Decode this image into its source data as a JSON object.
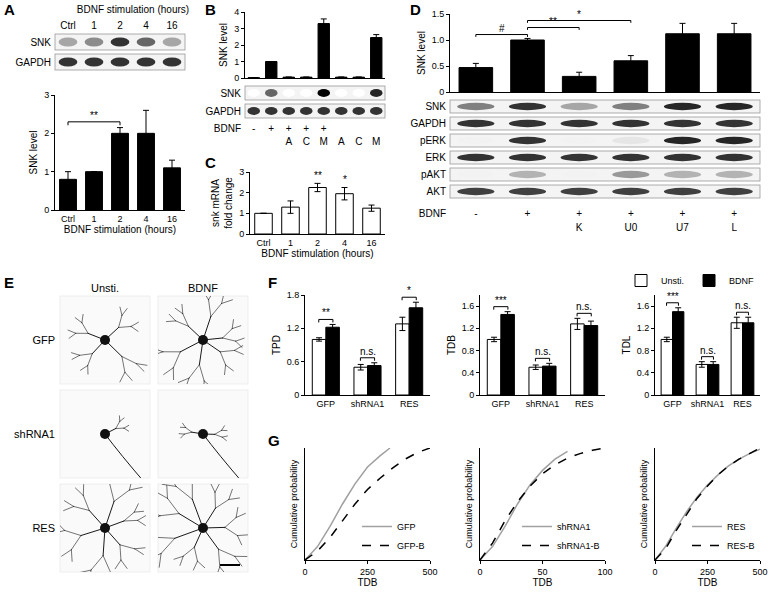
{
  "panel_labels": [
    "A",
    "B",
    "C",
    "D",
    "E",
    "F",
    "G"
  ],
  "blots": [
    {
      "header": "BDNF stimulation (hours)",
      "lanes": [
        "Ctrl",
        "1",
        "2",
        "4",
        "16"
      ],
      "rows": [
        {
          "label": "SNK",
          "intensity": [
            0.35,
            0.45,
            0.8,
            0.6,
            0.35
          ]
        },
        {
          "label": "GAPDH",
          "intensity": [
            0.8,
            0.8,
            0.8,
            0.8,
            0.8
          ]
        }
      ]
    },
    {
      "lane_rows": [
        {
          "label": "BDNF",
          "values": [
            "-",
            "+",
            "+",
            "+",
            "+",
            null,
            null,
            null
          ]
        },
        {
          "values": [
            null,
            null,
            "A",
            "C",
            "M",
            "A",
            "C",
            "M"
          ]
        }
      ],
      "rows": [
        {
          "label": "SNK",
          "intensity": [
            0,
            0.6,
            0,
            0,
            1,
            0,
            0,
            0.85
          ]
        },
        {
          "label": "GAPDH",
          "intensity": [
            0.8,
            0.8,
            0.8,
            0.8,
            0.8,
            0.8,
            0.8,
            0.8
          ]
        }
      ]
    },
    {
      "lane_rows": [
        {
          "label": "BDNF",
          "values": [
            "-",
            "+",
            "+",
            "+",
            "+",
            "+"
          ]
        },
        {
          "values": [
            null,
            null,
            "K",
            "U0",
            "U7",
            "L"
          ]
        }
      ],
      "rows": [
        {
          "label": "SNK",
          "intensity": [
            0.5,
            0.8,
            0.35,
            0.5,
            0.85,
            0.85
          ]
        },
        {
          "label": "GAPDH",
          "intensity": [
            0.8,
            0.8,
            0.8,
            0.8,
            0.8,
            0.8
          ]
        },
        {
          "label": "pERK",
          "intensity": [
            0.05,
            0.8,
            0.05,
            0.1,
            0.85,
            0.85
          ]
        },
        {
          "label": "ERK",
          "intensity": [
            0.8,
            0.8,
            0.8,
            0.8,
            0.8,
            0.8
          ]
        },
        {
          "label": "pAKT",
          "intensity": [
            0.05,
            0.3,
            0.05,
            0.4,
            0.3,
            0.3
          ]
        },
        {
          "label": "AKT",
          "intensity": [
            0.75,
            0.75,
            0.75,
            0.75,
            0.75,
            0.75
          ]
        }
      ]
    }
  ],
  "images": {
    "columns": [
      "Unsti.",
      "BDNF"
    ],
    "rows": [
      "GFP",
      "shRNA1",
      "RES"
    ]
  },
  "chart_data": [
    {
      "type": "bar",
      "categories": [
        "Ctrl",
        "1",
        "2",
        "4",
        "16"
      ],
      "values": [
        0.8,
        1.0,
        2.0,
        2.0,
        1.1
      ],
      "errors": [
        0.2,
        0,
        0.15,
        0.6,
        0.2
      ],
      "color": "#000000",
      "ylim": [
        0,
        3
      ],
      "yticks": [
        0,
        1,
        2,
        3
      ],
      "y_label": "SNK level",
      "x_label": "BDNF stimulation (hours)",
      "annotations": [
        {
          "from": 0,
          "to": 2,
          "text": "**"
        }
      ]
    },
    {
      "type": "bar",
      "categories": [
        null,
        null,
        null,
        null,
        null,
        null,
        null,
        null
      ],
      "values": [
        0.02,
        1.0,
        0.05,
        0.05,
        3.3,
        0.05,
        0.05,
        2.45
      ],
      "errors": [
        0,
        0,
        0,
        0,
        0.28,
        0,
        0,
        0.18
      ],
      "color": "#000000",
      "ylim": [
        0,
        4
      ],
      "yticks": [
        0,
        1,
        2,
        3,
        4
      ],
      "y_label": "SNK level",
      "tick_labels": "y"
    },
    {
      "type": "bar",
      "categories": [
        "Ctrl",
        "1",
        "2",
        "4",
        "16"
      ],
      "values": [
        1.0,
        1.3,
        2.25,
        1.95,
        1.25
      ],
      "errors": [
        0,
        0.3,
        0.2,
        0.3,
        0.15
      ],
      "color": "#ffffff",
      "ylim": [
        0,
        3
      ],
      "yticks": [
        0,
        1,
        2,
        3
      ],
      "y_label": [
        "snk mRNA",
        "fold change"
      ],
      "x_label": "BDNF stimulation (hours)",
      "annotations": [
        {
          "at": 2,
          "text": "**"
        },
        {
          "at": 3,
          "text": "*"
        }
      ]
    },
    {
      "type": "bar",
      "categories": [
        null,
        null,
        null,
        null,
        null,
        null
      ],
      "values": [
        0.47,
        1.0,
        0.3,
        0.6,
        1.12,
        1.12
      ],
      "errors": [
        0.08,
        0.03,
        0.08,
        0.1,
        0.2,
        0.2
      ],
      "color": "#000000",
      "ylim": [
        0,
        1.5
      ],
      "yticks": [
        0,
        0.5,
        {
          "value": 1,
          "label": "1.0"
        },
        1.5
      ],
      "y_label": "SNK level",
      "tick_labels": "y",
      "annotations": [
        {
          "from": 0,
          "to": 1,
          "text": "#"
        },
        {
          "from": 1,
          "to": 2,
          "text": "**"
        },
        {
          "from": 1,
          "to": 3,
          "text": "*"
        }
      ]
    },
    {
      "type": "bar",
      "categories": [
        "GFP",
        "shRNA1",
        "RES"
      ],
      "series": [
        {
          "name": "Unsti.",
          "color": "#ffffff",
          "values": [
            1.0,
            0.5,
            1.28
          ],
          "errors": [
            0.03,
            0.05,
            0.12
          ]
        },
        {
          "name": "BDNF",
          "color": "#000000",
          "values": [
            1.22,
            0.53,
            1.57
          ],
          "errors": [
            0.05,
            0.05,
            0.1
          ]
        }
      ],
      "ylim": [
        0,
        1.8
      ],
      "yticks": [
        0,
        0.6,
        1.2,
        1.8
      ],
      "y_label": "TPD",
      "annotations": [
        {
          "at": 0,
          "text": "**"
        },
        {
          "at": 1,
          "text": "n.s."
        },
        {
          "at": 2,
          "text": "*"
        }
      ]
    },
    {
      "type": "bar",
      "categories": [
        "GFP",
        "shRNA1",
        "RES"
      ],
      "series": [
        {
          "name": "Unsti.",
          "color": "#ffffff",
          "values": [
            1.0,
            0.5,
            1.28
          ],
          "errors": [
            0.04,
            0.04,
            0.1
          ]
        },
        {
          "name": "BDNF",
          "color": "#000000",
          "values": [
            1.45,
            0.52,
            1.25
          ],
          "errors": [
            0.05,
            0.05,
            0.08
          ]
        }
      ],
      "ylim": [
        0,
        1.8
      ],
      "yticks": [
        0,
        0.4,
        0.8,
        1.2,
        1.6
      ],
      "y_label": "TDB",
      "annotations": [
        {
          "at": 0,
          "text": "***"
        },
        {
          "at": 1,
          "text": "n.s."
        },
        {
          "at": 2,
          "text": "n.s."
        }
      ]
    },
    {
      "type": "bar",
      "categories": [
        "GFP",
        "shRNA1",
        "RES"
      ],
      "series": [
        {
          "name": "Unsti.",
          "color": "#ffffff",
          "values": [
            1.0,
            0.55,
            1.3
          ],
          "errors": [
            0.04,
            0.05,
            0.1
          ]
        },
        {
          "name": "BDNF",
          "color": "#000000",
          "values": [
            1.5,
            0.55,
            1.3
          ],
          "errors": [
            0.07,
            0.05,
            0.1
          ]
        }
      ],
      "ylim": [
        0,
        1.8
      ],
      "yticks": [
        0,
        0.4,
        0.8,
        1.2,
        1.6
      ],
      "y_label": "TDL",
      "legend": "top right",
      "annotations": [
        {
          "at": 0,
          "text": "***"
        },
        {
          "at": 1,
          "text": "n.s."
        },
        {
          "at": 2,
          "text": "n.s."
        }
      ]
    },
    {
      "type": "line",
      "series": [
        {
          "name": "GFP",
          "color": "#a0a0a0",
          "line_style": "solid",
          "x": [
            0,
            50,
            100,
            150,
            200,
            250,
            300,
            340
          ],
          "values": [
            0,
            0.12,
            0.3,
            0.5,
            0.68,
            0.83,
            0.93,
            1.0
          ]
        },
        {
          "name": "GFP-B",
          "color": "#000000",
          "line_style": "dash",
          "x": [
            0,
            50,
            100,
            150,
            200,
            250,
            300,
            350,
            400,
            450,
            500
          ],
          "values": [
            0,
            0.08,
            0.2,
            0.35,
            0.5,
            0.63,
            0.73,
            0.82,
            0.9,
            0.96,
            1.0
          ]
        }
      ],
      "xlim": [
        0,
        500
      ],
      "xticks": [
        0,
        250,
        500
      ],
      "ylim": [
        0,
        1
      ],
      "tick_labels": "x",
      "x_label": "TDB",
      "y_label": "Cumulative probability",
      "legend": "bottom right"
    },
    {
      "type": "line",
      "series": [
        {
          "name": "shRNA1",
          "color": "#a0a0a0",
          "line_style": "solid",
          "x": [
            0,
            10,
            20,
            30,
            40,
            50,
            60,
            70
          ],
          "values": [
            0,
            0.12,
            0.3,
            0.5,
            0.67,
            0.8,
            0.9,
            0.97
          ]
        },
        {
          "name": "shRNA1-B",
          "color": "#000000",
          "line_style": "dash",
          "x": [
            0,
            10,
            20,
            30,
            40,
            50,
            60,
            70,
            80,
            90,
            100
          ],
          "values": [
            0,
            0.15,
            0.35,
            0.52,
            0.66,
            0.77,
            0.85,
            0.91,
            0.95,
            0.98,
            1.0
          ]
        }
      ],
      "xlim": [
        0,
        100
      ],
      "xticks": [
        0,
        50,
        100
      ],
      "ylim": [
        0,
        1
      ],
      "tick_labels": "x",
      "x_label": "TDB",
      "y_label": "Cumulative probability",
      "legend": "bottom right"
    },
    {
      "type": "line",
      "series": [
        {
          "name": "RES",
          "color": "#a0a0a0",
          "line_style": "solid",
          "x": [
            0,
            50,
            100,
            150,
            200,
            250,
            300,
            350,
            400,
            450,
            500
          ],
          "values": [
            0,
            0.12,
            0.28,
            0.43,
            0.56,
            0.67,
            0.76,
            0.84,
            0.9,
            0.95,
            0.99
          ]
        },
        {
          "name": "RES-B",
          "color": "#000000",
          "line_style": "dash",
          "x": [
            0,
            50,
            100,
            150,
            200,
            250,
            300,
            350,
            400,
            450,
            500
          ],
          "values": [
            0,
            0.1,
            0.26,
            0.41,
            0.55,
            0.66,
            0.76,
            0.84,
            0.9,
            0.95,
            1.0
          ]
        }
      ],
      "xlim": [
        0,
        500
      ],
      "xticks": [
        0,
        250,
        500
      ],
      "ylim": [
        0,
        1
      ],
      "tick_labels": "x",
      "x_label": "TDB",
      "y_label": "Cumulative probability",
      "legend": "bottom right"
    }
  ]
}
